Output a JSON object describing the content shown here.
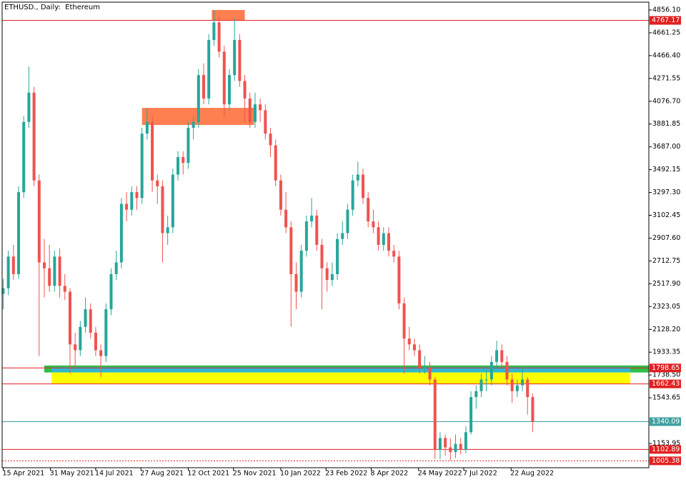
{
  "chart_data": {
    "type": "candlestick",
    "title": "ETHUSD., Daily:  Ethereum",
    "up_color": "#26a69a",
    "down_color": "#ef5350",
    "xlim": [
      -1,
      628
    ],
    "ylim": [
      946.6,
      4923
    ],
    "xticks": [
      {
        "value": 0,
        "label": "15 Apr 2021"
      },
      {
        "value": 46,
        "label": "31 May 2021"
      },
      {
        "value": 90,
        "label": "14 Jul 2021"
      },
      {
        "value": 134,
        "label": "27 Aug 2021"
      },
      {
        "value": 180,
        "label": "12 Oct 2021"
      },
      {
        "value": 224,
        "label": "25 Nov 2021"
      },
      {
        "value": 270,
        "label": "10 Jan 2022"
      },
      {
        "value": 314,
        "label": "23 Feb 2022"
      },
      {
        "value": 358,
        "label": "8 Apr 2022"
      },
      {
        "value": 404,
        "label": "24 May 2022"
      },
      {
        "value": 448,
        "label": "7 Jul 2022"
      },
      {
        "value": 494,
        "label": "22 Aug 2022"
      }
    ],
    "yticks": [
      {
        "value": 4856.1,
        "label": "4856.10"
      },
      4661.25,
      {
        "value": 4466.4,
        "label": "4466.40"
      },
      4271.55,
      {
        "value": 4076.7,
        "label": "4076.70"
      },
      3881.85,
      {
        "value": 3687,
        "label": "3687.00"
      },
      3492.15,
      {
        "value": 3297.3,
        "label": "3297.30"
      },
      3102.45,
      {
        "value": 2907.6,
        "label": "2907.60"
      },
      2712.75,
      {
        "value": 2517.9,
        "label": "2517.90"
      },
      2323.05,
      {
        "value": 2128.2,
        "label": "2128.20"
      },
      1933.35,
      {
        "value": 1738.5,
        "label": "1738.50"
      },
      1543.65,
      1153.95
    ],
    "x": [
      0,
      5,
      10,
      15,
      20,
      25,
      30,
      35,
      40,
      45,
      50,
      55,
      60,
      65,
      70,
      75,
      80,
      85,
      90,
      95,
      100,
      105,
      110,
      115,
      120,
      125,
      130,
      135,
      140,
      145,
      150,
      155,
      160,
      165,
      170,
      175,
      180,
      185,
      190,
      195,
      200,
      205,
      210,
      215,
      220,
      225,
      230,
      235,
      240,
      245,
      250,
      255,
      260,
      265,
      270,
      275,
      280,
      285,
      290,
      295,
      300,
      305,
      310,
      315,
      320,
      325,
      330,
      335,
      340,
      345,
      350,
      355,
      360,
      365,
      370,
      375,
      380,
      385,
      390,
      395,
      400,
      405,
      410,
      415,
      420,
      425,
      430,
      435,
      440,
      445,
      450,
      455,
      460,
      465,
      470,
      475,
      480,
      485,
      490,
      495,
      500,
      505,
      510,
      515
    ],
    "open": [
      2430,
      2480,
      2750,
      2600,
      3300,
      3900,
      4150,
      3400,
      2700,
      2650,
      2500,
      2750,
      2500,
      2450,
      2000,
      1950,
      2150,
      2300,
      2100,
      1950,
      1900,
      2300,
      2600,
      2700,
      3200,
      3150,
      3300,
      3250,
      3800,
      3900,
      3400,
      3350,
      2950,
      3000,
      3450,
      3600,
      3550,
      3850,
      3900,
      4300,
      4100,
      4600,
      4750,
      4500,
      4050,
      4300,
      4600,
      4250,
      4100,
      3900,
      4050,
      4000,
      3800,
      3700,
      3400,
      3150,
      3000,
      2600,
      2450,
      2800,
      3050,
      3100,
      2850,
      2650,
      2550,
      2600,
      2900,
      2950,
      3150,
      3400,
      3450,
      3250,
      3050,
      3000,
      2850,
      2950,
      2800,
      2750,
      2350,
      2050,
      2000,
      1950,
      1800,
      1800,
      1700,
      1100,
      1200,
      1120,
      1080,
      1150,
      1100,
      1250,
      1550,
      1600,
      1700,
      1700,
      1850,
      1950,
      1850,
      1700,
      1600,
      1650,
      1700,
      1550
    ],
    "high": [
      2560,
      2800,
      2850,
      3350,
      3950,
      4374,
      4200,
      3450,
      2900,
      2850,
      2800,
      2820,
      2600,
      2480,
      2100,
      2200,
      2400,
      2350,
      2150,
      2000,
      2350,
      2650,
      2800,
      3250,
      3300,
      3350,
      3350,
      3850,
      4020,
      3950,
      3450,
      3400,
      3100,
      3500,
      3650,
      3650,
      3900,
      3950,
      4350,
      4400,
      4650,
      4856,
      4800,
      4550,
      4350,
      4780,
      4650,
      4300,
      4150,
      4150,
      4100,
      4050,
      3850,
      3750,
      3450,
      3300,
      3050,
      2700,
      2850,
      3100,
      3250,
      3150,
      2900,
      2700,
      2700,
      2950,
      3050,
      3200,
      3450,
      3560,
      3500,
      3300,
      3150,
      3050,
      3000,
      3000,
      2850,
      2800,
      2400,
      2150,
      2050,
      2000,
      1900,
      1850,
      1720,
      1250,
      1230,
      1200,
      1230,
      1200,
      1300,
      1600,
      1650,
      1750,
      1780,
      1900,
      2030,
      2000,
      1900,
      1750,
      1700,
      1800,
      1720,
      1580
    ],
    "low": [
      2300,
      2420,
      2550,
      2560,
      3250,
      3850,
      3350,
      1900,
      2400,
      2450,
      2450,
      2400,
      2380,
      1750,
      1800,
      1900,
      2100,
      2050,
      1900,
      1720,
      1850,
      2250,
      2550,
      2650,
      3050,
      3100,
      3150,
      3200,
      3750,
      3300,
      3200,
      2700,
      2850,
      2950,
      3400,
      3450,
      3500,
      3750,
      3850,
      4050,
      4050,
      4550,
      4450,
      3950,
      4000,
      4250,
      4200,
      3900,
      3850,
      3850,
      3900,
      3750,
      3600,
      3350,
      3100,
      2950,
      2150,
      2300,
      2400,
      2750,
      3000,
      2800,
      2300,
      2450,
      2500,
      2550,
      2850,
      2900,
      3100,
      3350,
      3200,
      3000,
      2950,
      2800,
      2800,
      2750,
      2700,
      2300,
      1750,
      1950,
      1900,
      1750,
      1750,
      1650,
      1020,
      1020,
      1050,
      1010,
      1030,
      1060,
      1070,
      1230,
      1450,
      1550,
      1600,
      1650,
      1800,
      1800,
      1650,
      1500,
      1550,
      1600,
      1400,
      1250
    ],
    "close": [
      2480,
      2750,
      2600,
      3300,
      3900,
      4150,
      3400,
      2700,
      2650,
      2500,
      2750,
      2500,
      2450,
      2000,
      1950,
      2150,
      2300,
      2100,
      1950,
      1900,
      2300,
      2600,
      2700,
      3200,
      3150,
      3300,
      3250,
      3800,
      3900,
      3400,
      3350,
      2950,
      3000,
      3450,
      3600,
      3550,
      3850,
      3900,
      4300,
      4100,
      4600,
      4750,
      4500,
      4050,
      4300,
      4600,
      4250,
      4100,
      3900,
      4050,
      4000,
      3800,
      3700,
      3400,
      3150,
      3000,
      2600,
      2450,
      2800,
      3050,
      3100,
      2850,
      2650,
      2550,
      2600,
      2900,
      2950,
      3150,
      3400,
      3450,
      3250,
      3050,
      3000,
      2850,
      2950,
      2800,
      2750,
      2350,
      2050,
      2000,
      1950,
      1800,
      1800,
      1700,
      1100,
      1200,
      1120,
      1080,
      1150,
      1100,
      1250,
      1550,
      1600,
      1700,
      1700,
      1850,
      1950,
      1850,
      1700,
      1600,
      1650,
      1700,
      1550,
      1340.09
    ],
    "zones": [
      {
        "color": "#ff7f50",
        "x1": 203,
        "x2": 235,
        "y1": 4767.17,
        "y2": 4856.1
      },
      {
        "color": "#ff7f50",
        "x1": 135,
        "x2": 244,
        "y1": 3874,
        "y2": 4020
      },
      {
        "color": "#2ebd4a",
        "x1": 40,
        "x2": 628,
        "y1": 1760,
        "y2": 1820
      },
      {
        "color": "#30b8d0",
        "x1": 47,
        "x2": 610,
        "y1": 1760,
        "y2": 1805
      },
      {
        "color": "#ffff00",
        "x1": 47,
        "x2": 610,
        "y1": 1662.43,
        "y2": 1760
      }
    ],
    "levels": [
      {
        "value": 4767.17,
        "color": "#e02020",
        "style": "solid"
      },
      {
        "value": 1798.65,
        "color": "#e02020",
        "style": "solid"
      },
      {
        "value": 1662.43,
        "color": "#e02020",
        "style": "solid"
      },
      {
        "value": 1340.09,
        "color": "#3f9fa0",
        "style": "solid"
      },
      {
        "value": 1102.89,
        "color": "#e02020",
        "style": "solid"
      },
      {
        "value": 1005.38,
        "color": "#e02020",
        "style": "dotted"
      }
    ]
  }
}
